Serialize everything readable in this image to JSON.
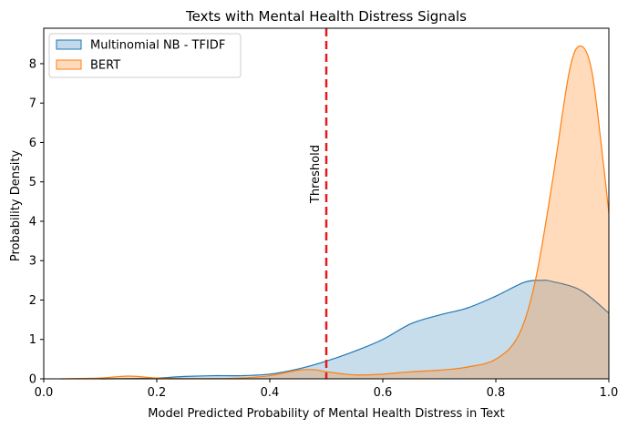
{
  "chart_data": {
    "type": "area",
    "title": "Texts with Mental Health Distress Signals",
    "xlabel": "Model Predicted Probability of Mental Health Distress in Text",
    "ylabel": "Probability Density",
    "xlim": [
      0.0,
      1.0
    ],
    "ylim": [
      0.0,
      8.9
    ],
    "x_ticks": [
      "0.0",
      "0.2",
      "0.4",
      "0.6",
      "0.8",
      "1.0"
    ],
    "y_ticks": [
      "0",
      "1",
      "2",
      "3",
      "4",
      "5",
      "6",
      "7",
      "8"
    ],
    "grid": false,
    "legend_position": "upper-left",
    "series": [
      {
        "name": "Multinomial NB - TFIDF",
        "color": "#1f77b4",
        "points": [
          [
            0.1,
            0.0
          ],
          [
            0.15,
            0.005
          ],
          [
            0.2,
            0.02
          ],
          [
            0.25,
            0.06
          ],
          [
            0.3,
            0.08
          ],
          [
            0.35,
            0.08
          ],
          [
            0.4,
            0.12
          ],
          [
            0.45,
            0.25
          ],
          [
            0.5,
            0.45
          ],
          [
            0.55,
            0.7
          ],
          [
            0.6,
            1.0
          ],
          [
            0.65,
            1.4
          ],
          [
            0.7,
            1.62
          ],
          [
            0.75,
            1.8
          ],
          [
            0.8,
            2.1
          ],
          [
            0.85,
            2.45
          ],
          [
            0.88,
            2.5
          ],
          [
            0.9,
            2.47
          ],
          [
            0.95,
            2.25
          ],
          [
            1.0,
            1.67
          ]
        ]
      },
      {
        "name": "BERT",
        "color": "#ff7f0e",
        "points": [
          [
            0.03,
            0.0
          ],
          [
            0.1,
            0.02
          ],
          [
            0.15,
            0.07
          ],
          [
            0.2,
            0.02
          ],
          [
            0.25,
            0.005
          ],
          [
            0.3,
            0.005
          ],
          [
            0.35,
            0.02
          ],
          [
            0.4,
            0.08
          ],
          [
            0.45,
            0.22
          ],
          [
            0.48,
            0.23
          ],
          [
            0.5,
            0.18
          ],
          [
            0.55,
            0.1
          ],
          [
            0.6,
            0.12
          ],
          [
            0.65,
            0.18
          ],
          [
            0.7,
            0.22
          ],
          [
            0.75,
            0.3
          ],
          [
            0.8,
            0.5
          ],
          [
            0.84,
            1.1
          ],
          [
            0.87,
            2.5
          ],
          [
            0.9,
            5.0
          ],
          [
            0.93,
            7.8
          ],
          [
            0.95,
            8.45
          ],
          [
            0.97,
            7.8
          ],
          [
            0.99,
            5.5
          ],
          [
            1.0,
            4.2
          ]
        ]
      }
    ],
    "threshold": {
      "x": 0.5,
      "label": "Threshold",
      "color": "#e31a1c"
    }
  }
}
